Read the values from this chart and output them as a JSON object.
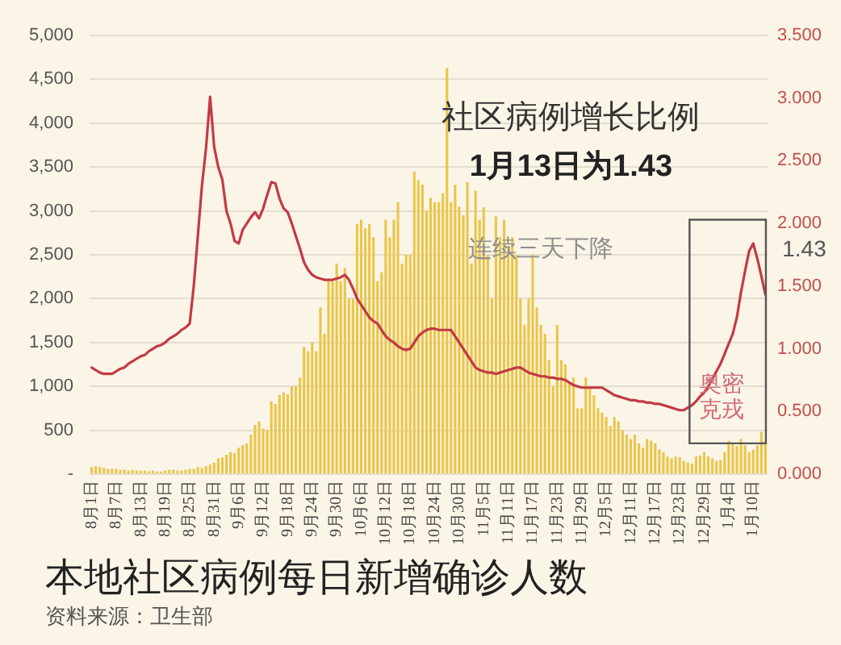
{
  "chart_data": {
    "type": "bar",
    "title": "本地社区病例每日新增确诊人数",
    "annotations": [
      "社区病例增长比例",
      "1月13日为1.43",
      "连续三天下降",
      "奥密克戎",
      "1.43",
      "资料来源：卫生部"
    ],
    "categories": [
      "8月1日",
      null,
      null,
      null,
      null,
      null,
      "8月7日",
      null,
      null,
      null,
      null,
      null,
      "8月13日",
      null,
      null,
      null,
      null,
      null,
      "8月19日",
      null,
      null,
      null,
      null,
      null,
      "8月25日",
      null,
      null,
      null,
      null,
      null,
      "8月31日",
      null,
      null,
      null,
      null,
      null,
      "9月6日",
      null,
      null,
      null,
      null,
      null,
      "9月12日",
      null,
      null,
      null,
      null,
      null,
      "9月18日",
      null,
      null,
      null,
      null,
      null,
      "9月24日",
      null,
      null,
      null,
      null,
      null,
      "9月30日",
      null,
      null,
      null,
      null,
      null,
      "10月6日",
      null,
      null,
      null,
      null,
      null,
      "10月12日",
      null,
      null,
      null,
      null,
      null,
      "10月18日",
      null,
      null,
      null,
      null,
      null,
      "10月24日",
      null,
      null,
      null,
      null,
      null,
      "10月30日",
      null,
      null,
      null,
      null,
      null,
      "11月5日",
      null,
      null,
      null,
      null,
      null,
      "11月11日",
      null,
      null,
      null,
      null,
      null,
      "11月17日",
      null,
      null,
      null,
      null,
      null,
      "11月23日",
      null,
      null,
      null,
      null,
      null,
      "11月29日",
      null,
      null,
      null,
      null,
      null,
      "12月5日",
      null,
      null,
      null,
      null,
      null,
      "12月11日",
      null,
      null,
      null,
      null,
      null,
      "12月17日",
      null,
      null,
      null,
      null,
      null,
      "12月23日",
      null,
      null,
      null,
      null,
      null,
      "12月29日",
      null,
      null,
      null,
      null,
      null,
      "1月4日",
      null,
      null,
      null,
      null,
      null,
      "1月10日",
      null,
      null,
      null
    ],
    "series": [
      {
        "color": "#eac64a",
        "values": [
          80,
          90,
          80,
          70,
          60,
          60,
          60,
          50,
          50,
          40,
          50,
          40,
          40,
          40,
          30,
          40,
          30,
          30,
          40,
          50,
          50,
          40,
          40,
          50,
          60,
          60,
          80,
          70,
          90,
          110,
          130,
          180,
          190,
          220,
          250,
          240,
          300,
          330,
          350,
          450,
          560,
          600,
          520,
          500,
          830,
          800,
          900,
          930,
          910,
          1000,
          1000,
          1100,
          1450,
          1400,
          1500,
          1400,
          1900,
          1600,
          2200,
          2200,
          2400,
          2200,
          2350,
          2000,
          2000,
          2850,
          2900,
          2800,
          2850,
          2700,
          2200,
          2300,
          2900,
          2700,
          2900,
          3100,
          2400,
          2500,
          2500,
          3450,
          3350,
          3300,
          3000,
          3150,
          3100,
          3100,
          3200,
          4630,
          3100,
          3300,
          3050,
          2950,
          3330,
          2400,
          3230,
          2900,
          3040,
          2500,
          2000,
          2940,
          2700,
          2900,
          2600,
          2700,
          2500,
          2000,
          1700,
          2000,
          2500,
          1900,
          1700,
          1600,
          1300,
          1000,
          1700,
          1300,
          1250,
          1050,
          1100,
          750,
          750,
          1100,
          1000,
          900,
          750,
          700,
          650,
          550,
          650,
          600,
          500,
          450,
          400,
          450,
          350,
          300,
          400,
          380,
          350,
          280,
          250,
          200,
          180,
          200,
          190,
          150,
          130,
          120,
          200,
          210,
          250,
          200,
          180,
          150,
          160,
          250,
          380,
          350,
          320,
          400,
          330,
          250,
          280,
          330,
          480,
          380
        ]
      },
      {
        "type": "line",
        "axis": "y2",
        "color": "#c23a45",
        "values": [
          0.85,
          0.83,
          0.81,
          0.8,
          0.8,
          0.8,
          0.82,
          0.84,
          0.85,
          0.88,
          0.9,
          0.92,
          0.94,
          0.95,
          0.98,
          1.0,
          1.02,
          1.03,
          1.05,
          1.08,
          1.1,
          1.12,
          1.15,
          1.17,
          1.2,
          1.5,
          1.9,
          2.3,
          2.6,
          3.01,
          2.61,
          2.45,
          2.35,
          2.1,
          2.0,
          1.86,
          1.84,
          1.95,
          2.0,
          2.05,
          2.09,
          2.04,
          2.12,
          2.23,
          2.33,
          2.32,
          2.2,
          2.12,
          2.09,
          2.0,
          1.9,
          1.8,
          1.69,
          1.63,
          1.59,
          1.57,
          1.56,
          1.55,
          1.55,
          1.55,
          1.56,
          1.57,
          1.59,
          1.55,
          1.48,
          1.4,
          1.35,
          1.3,
          1.25,
          1.22,
          1.2,
          1.15,
          1.1,
          1.07,
          1.05,
          1.02,
          1.0,
          0.99,
          1.0,
          1.05,
          1.1,
          1.13,
          1.15,
          1.16,
          1.16,
          1.15,
          1.15,
          1.15,
          1.15,
          1.1,
          1.05,
          1.0,
          0.95,
          0.9,
          0.85,
          0.83,
          0.82,
          0.81,
          0.81,
          0.8,
          0.81,
          0.82,
          0.83,
          0.84,
          0.85,
          0.85,
          0.83,
          0.81,
          0.8,
          0.79,
          0.78,
          0.78,
          0.77,
          0.77,
          0.76,
          0.76,
          0.75,
          0.73,
          0.71,
          0.7,
          0.69,
          0.69,
          0.69,
          0.69,
          0.69,
          0.69,
          0.67,
          0.65,
          0.63,
          0.62,
          0.61,
          0.6,
          0.59,
          0.59,
          0.58,
          0.58,
          0.57,
          0.57,
          0.56,
          0.56,
          0.55,
          0.54,
          0.53,
          0.52,
          0.51,
          0.51,
          0.53,
          0.55,
          0.58,
          0.62,
          0.65,
          0.7,
          0.76,
          0.82,
          0.88,
          0.96,
          1.04,
          1.12,
          1.25,
          1.45,
          1.62,
          1.78,
          1.84,
          1.72,
          1.58,
          1.43
        ]
      }
    ],
    "ylim": [
      0,
      5000
    ],
    "yticks": [
      {
        "value": 0,
        "label": "-"
      },
      {
        "value": 500,
        "label": "500"
      },
      {
        "value": 1000,
        "label": "1,000"
      },
      {
        "value": 1500,
        "label": "1,500"
      },
      {
        "value": 2000,
        "label": "2,000"
      },
      {
        "value": 2500,
        "label": "2,500"
      },
      {
        "value": 3000,
        "label": "3,000"
      },
      {
        "value": 3500,
        "label": "3,500"
      },
      {
        "value": 4000,
        "label": "4,000"
      },
      {
        "value": 4500,
        "label": "4,500"
      },
      {
        "value": 5000,
        "label": "5,000"
      }
    ],
    "y2lim": [
      0,
      3.5
    ],
    "y2ticks": [
      {
        "value": 0,
        "label": "0.000"
      },
      {
        "value": 0.5,
        "label": "0.500"
      },
      {
        "value": 1,
        "label": "1.000"
      },
      {
        "value": 1.5,
        "label": "1.500"
      },
      {
        "value": 2,
        "label": "2.000"
      },
      {
        "value": 2.5,
        "label": "2.500"
      },
      {
        "value": 3,
        "label": "3.000"
      },
      {
        "value": 3.5,
        "label": "3.500"
      }
    ],
    "grid": "y",
    "marker": "none",
    "line_style": "solid"
  }
}
